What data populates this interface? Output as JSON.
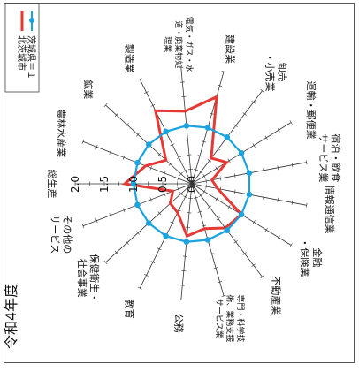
{
  "chart_data": {
    "type": "radar",
    "title": "令和4年度",
    "orientation": "rotated-90-clockwise",
    "rmax": 2.0,
    "ticks": [
      "0.0",
      "0.5",
      "1.0",
      "1.5",
      "2.0"
    ],
    "tick_values": [
      0,
      0.5,
      1.0,
      1.5,
      2.0
    ],
    "grid": true,
    "legend_position": "top-left",
    "categories": [
      "総生産",
      "農林水産業",
      "鉱業",
      "製造業",
      "電気・ガス・水道・廃棄物処理業",
      "建設業",
      "卸売・小売業",
      "運輸・郵便業",
      "宿泊・飲食サービス業",
      "情報通信業",
      "金融・保険業",
      "不動産業",
      "専門・科学技術、業務支援サービス業",
      "公務",
      "教育",
      "保健衛生・社会事業",
      "その他のサービス"
    ],
    "series": [
      {
        "name": "北茨城市",
        "color": "#e53935",
        "values": [
          1.15,
          0.85,
          0.6,
          1.4,
          1.25,
          1.55,
          0.55,
          0.7,
          0.35,
          0.45,
          1.0,
          0.95,
          0.8,
          0.9,
          0.55,
          0.5,
          0.35
        ]
      },
      {
        "name": "茨城県＝１",
        "color": "#1aa3de",
        "values": [
          1,
          1,
          1,
          1,
          1,
          1,
          1,
          1,
          1,
          1,
          1,
          1,
          1,
          1,
          1,
          1,
          1
        ]
      }
    ]
  }
}
